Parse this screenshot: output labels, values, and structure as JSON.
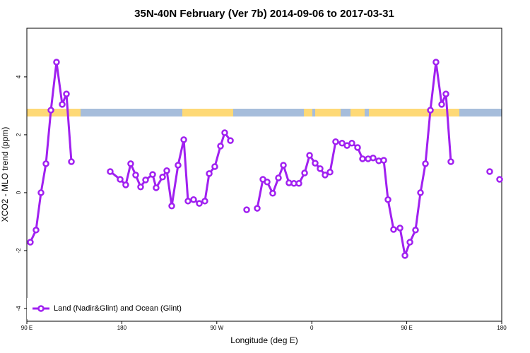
{
  "chart_data": {
    "type": "line",
    "title": "35N-40N February (Ver 7b)   2014-09-06 to 2017-03-31",
    "x_label": "Longitude (deg E)",
    "y_label": "XCO2 - MLO trend (ppm)",
    "xlim": [
      90,
      540
    ],
    "ylim": [
      -4.44,
      5.68
    ],
    "xticks": [
      {
        "value": 90,
        "label": "90 E"
      },
      180,
      {
        "value": 270,
        "label": "90 W"
      },
      {
        "value": 360,
        "label": "0"
      },
      {
        "value": 450,
        "label": "90 E"
      },
      {
        "value": 540,
        "label": "180"
      }
    ],
    "yticks": [
      -4,
      -2,
      0,
      2,
      4
    ],
    "legend": "bottom-left",
    "series": [
      {
        "name": "Land (Nadir&Glint) and Ocean (Glint)",
        "color": "#a020f0",
        "x": [
          93.3,
          98.7,
          103.4,
          108.1,
          112.8,
          118.1,
          123.5,
          127.5,
          132.2,
          null,
          169.0,
          178.4,
          183.7,
          188.4,
          193.1,
          197.8,
          202.5,
          209.2,
          212.5,
          218.6,
          222.6,
          227.3,
          233.3,
          238.7,
          242.7,
          248.0,
          253.4,
          258.7,
          262.8,
          268.1,
          273.5,
          277.5,
          282.9,
          null,
          298.3,
          null,
          308.3,
          313.7,
          317.7,
          323.0,
          328.4,
          333.1,
          338.4,
          343.1,
          347.8,
          353.2,
          357.9,
          363.2,
          367.9,
          372.6,
          377.3,
          382.6,
          388.7,
          393.4,
          398.0,
          403.4,
          408.1,
          413.4,
          418.1,
          423.5,
          428.2,
          432.2,
          437.5,
          443.6,
          448.3,
          453.0,
          458.3,
          463.0,
          467.7,
          472.4,
          477.7,
          483.1,
          487.1,
          491.8,
          null,
          528.6,
          null,
          538.0
        ],
        "values": [
          -1.71,
          -1.29,
          0.0,
          1.0,
          2.85,
          4.51,
          3.05,
          3.41,
          1.07,
          null,
          0.73,
          0.46,
          0.27,
          1.0,
          0.61,
          0.2,
          0.44,
          0.63,
          0.17,
          0.54,
          0.76,
          -0.46,
          0.95,
          1.83,
          -0.29,
          -0.24,
          -0.37,
          -0.29,
          0.66,
          0.9,
          1.61,
          2.07,
          1.8,
          null,
          -0.59,
          null,
          -0.54,
          0.46,
          0.37,
          -0.02,
          0.51,
          0.95,
          0.34,
          0.32,
          0.32,
          0.68,
          1.29,
          1.02,
          0.83,
          0.61,
          0.71,
          1.76,
          1.71,
          1.63,
          1.71,
          1.56,
          1.17,
          1.17,
          1.2,
          1.1,
          1.12,
          -0.24,
          -1.27,
          -1.22,
          -2.17,
          -1.71,
          -1.29,
          0.0,
          1.0,
          2.85,
          4.51,
          3.05,
          3.41,
          1.07,
          null,
          0.73,
          null,
          0.46
        ]
      }
    ]
  }
}
